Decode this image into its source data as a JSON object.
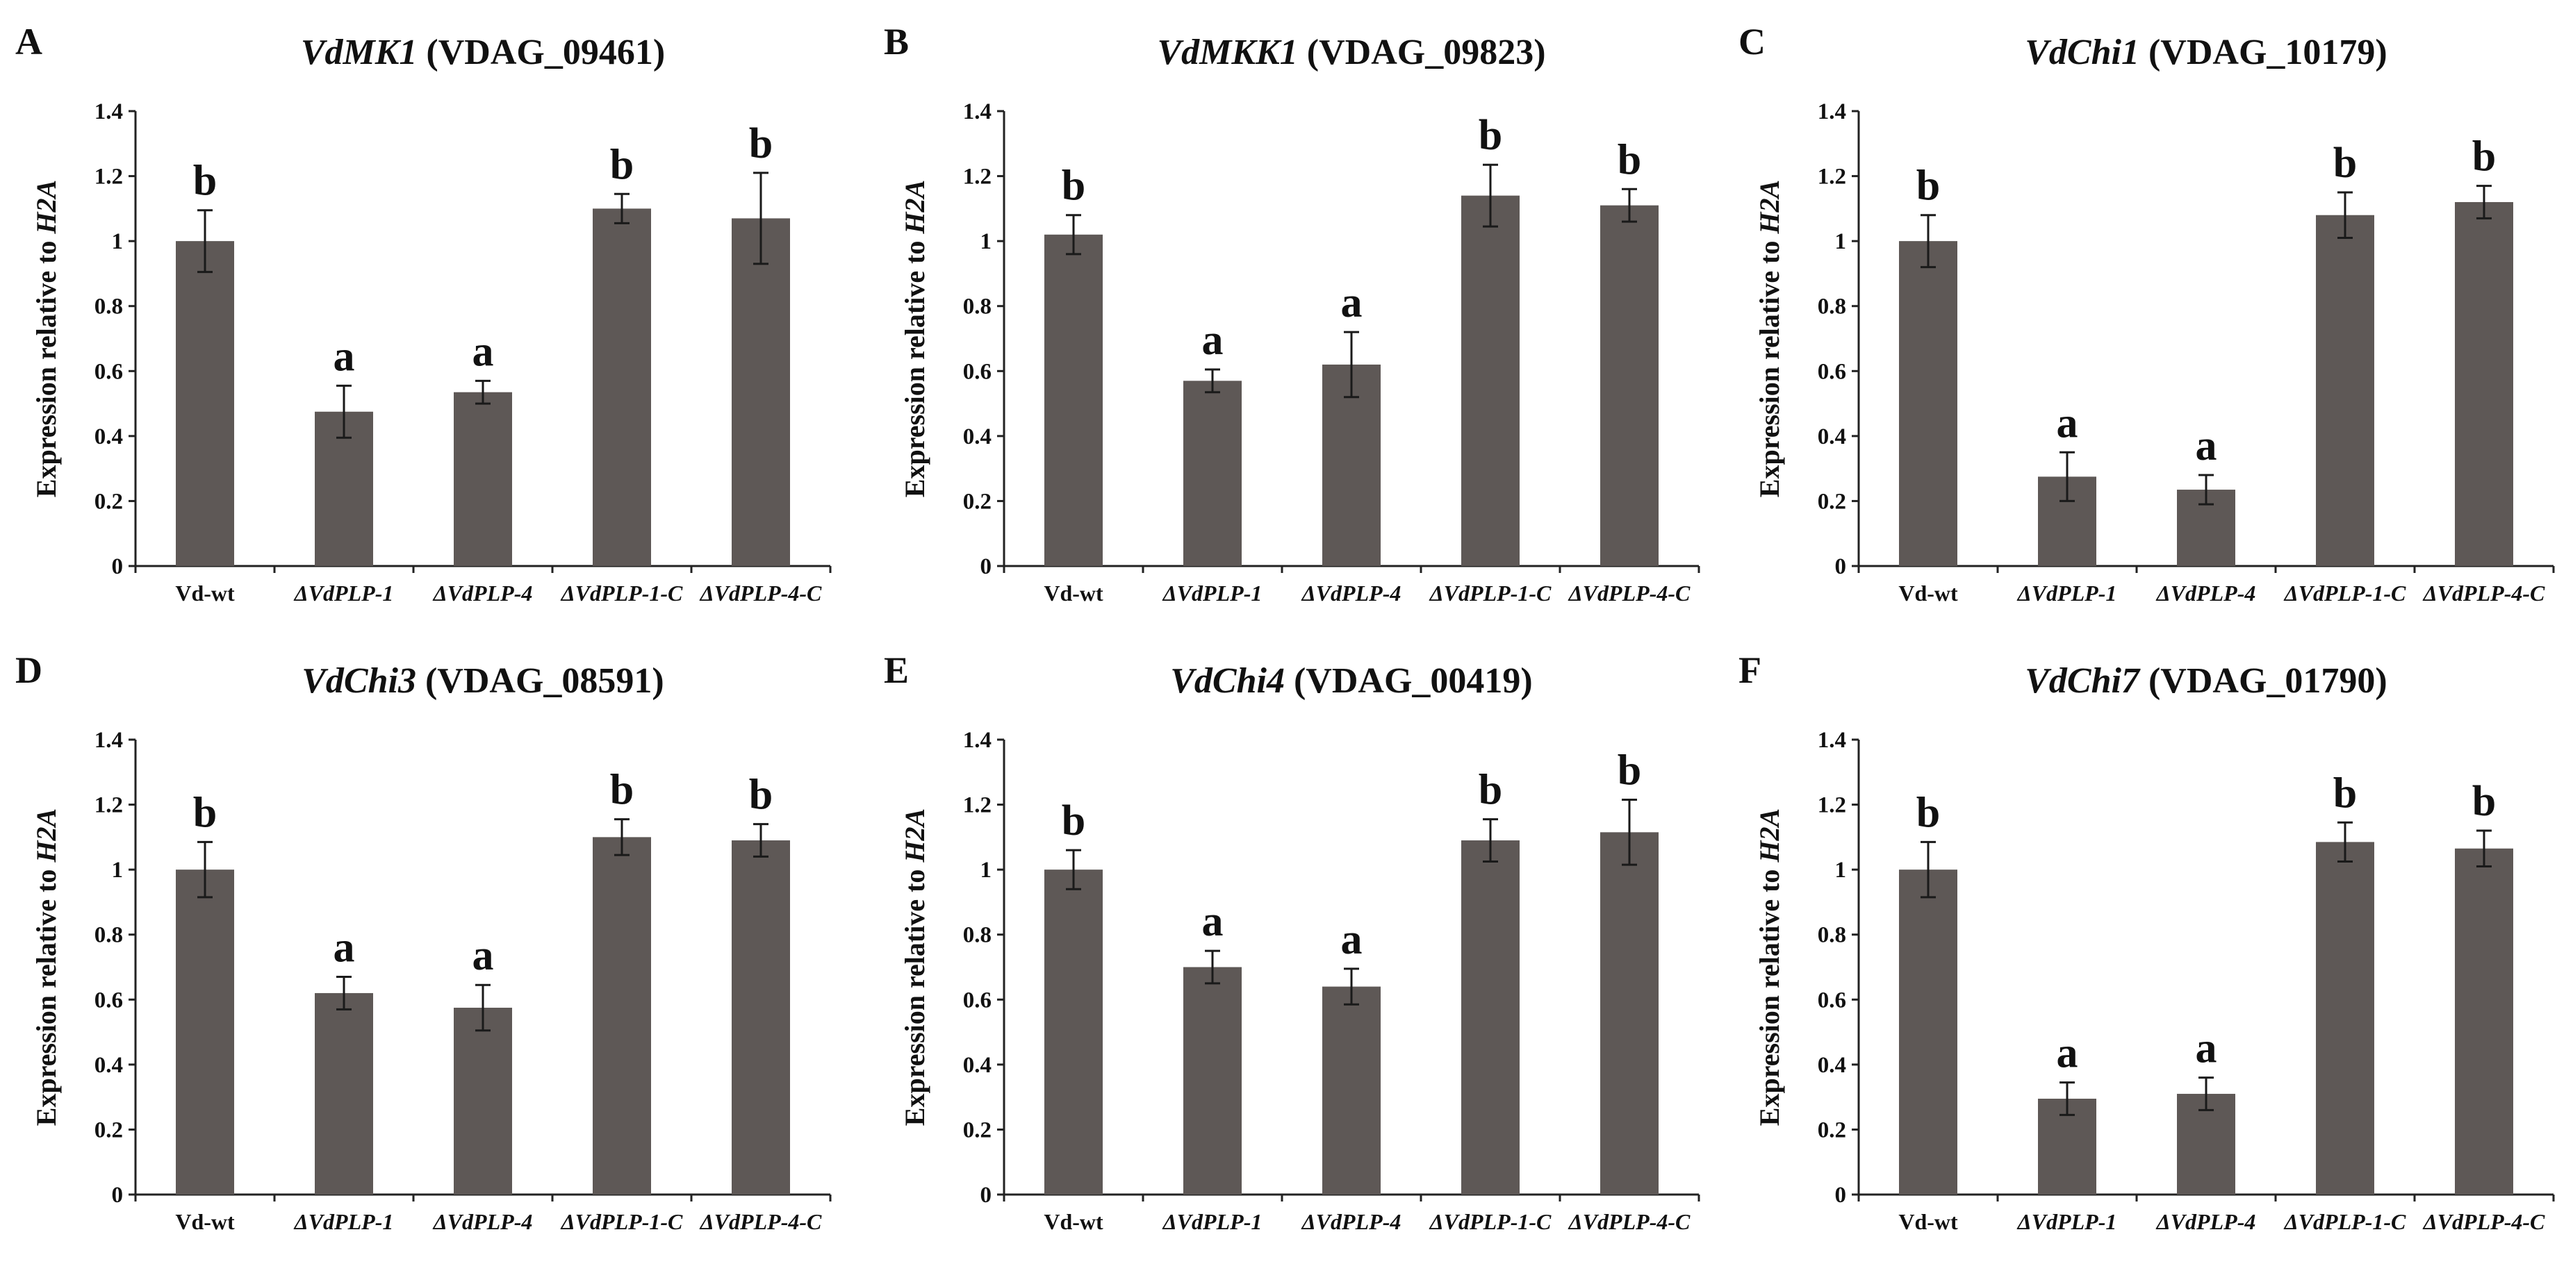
{
  "figure": {
    "bar_color": "#5e5856",
    "axis_color": "#222222",
    "text_color": "#111111"
  },
  "chart_data": [
    {
      "type": "bar",
      "panel": "A",
      "title_gene": "VdMK1",
      "title_id": "(VDAG_09461)",
      "ylabel_prefix": "Expression relative to ",
      "ylabel_ref": "H2A",
      "ylim": [
        0,
        1.4
      ],
      "yticks": [
        "0",
        "0.2",
        "0.4",
        "0.6",
        "0.8",
        "1",
        "1.2",
        "1.4"
      ],
      "categories": [
        "Vd-wt",
        "ΔVdPLP-1",
        "ΔVdPLP-4",
        "ΔVdPLP-1-C",
        "ΔVdPLP-4-C"
      ],
      "values": [
        1.0,
        0.475,
        0.535,
        1.1,
        1.07
      ],
      "errors": [
        0.095,
        0.08,
        0.035,
        0.045,
        0.14
      ],
      "letters": [
        "b",
        "a",
        "a",
        "b",
        "b"
      ]
    },
    {
      "type": "bar",
      "panel": "B",
      "title_gene": "VdMKK1",
      "title_id": "(VDAG_09823)",
      "ylabel_prefix": "Expression relative to ",
      "ylabel_ref": "H2A",
      "ylim": [
        0,
        1.4
      ],
      "yticks": [
        "0",
        "0.2",
        "0.4",
        "0.6",
        "0.8",
        "1",
        "1.2",
        "1.4"
      ],
      "categories": [
        "Vd-wt",
        "ΔVdPLP-1",
        "ΔVdPLP-4",
        "ΔVdPLP-1-C",
        "ΔVdPLP-4-C"
      ],
      "values": [
        1.02,
        0.57,
        0.62,
        1.14,
        1.11
      ],
      "errors": [
        0.06,
        0.035,
        0.1,
        0.095,
        0.05
      ],
      "letters": [
        "b",
        "a",
        "a",
        "b",
        "b"
      ]
    },
    {
      "type": "bar",
      "panel": "C",
      "title_gene": "VdChi1",
      "title_id": "(VDAG_10179)",
      "ylabel_prefix": "Expression relative to ",
      "ylabel_ref": "H2A",
      "ylim": [
        0,
        1.4
      ],
      "yticks": [
        "0",
        "0.2",
        "0.4",
        "0.6",
        "0.8",
        "1",
        "1.2",
        "1.4"
      ],
      "categories": [
        "Vd-wt",
        "ΔVdPLP-1",
        "ΔVdPLP-4",
        "ΔVdPLP-1-C",
        "ΔVdPLP-4-C"
      ],
      "values": [
        1.0,
        0.275,
        0.235,
        1.08,
        1.12
      ],
      "errors": [
        0.08,
        0.075,
        0.045,
        0.07,
        0.05
      ],
      "letters": [
        "b",
        "a",
        "a",
        "b",
        "b"
      ]
    },
    {
      "type": "bar",
      "panel": "D",
      "title_gene": "VdChi3",
      "title_id": "(VDAG_08591)",
      "ylabel_prefix": "Expression relative to ",
      "ylabel_ref": "H2A",
      "ylim": [
        0,
        1.4
      ],
      "yticks": [
        "0",
        "0.2",
        "0.4",
        "0.6",
        "0.8",
        "1",
        "1.2",
        "1.4"
      ],
      "categories": [
        "Vd-wt",
        "ΔVdPLP-1",
        "ΔVdPLP-4",
        "ΔVdPLP-1-C",
        "ΔVdPLP-4-C"
      ],
      "values": [
        1.0,
        0.62,
        0.575,
        1.1,
        1.09
      ],
      "errors": [
        0.085,
        0.05,
        0.07,
        0.055,
        0.05
      ],
      "letters": [
        "b",
        "a",
        "a",
        "b",
        "b"
      ]
    },
    {
      "type": "bar",
      "panel": "E",
      "title_gene": "VdChi4",
      "title_id": "(VDAG_00419)",
      "ylabel_prefix": "Expression relative to ",
      "ylabel_ref": "H2A",
      "ylim": [
        0,
        1.4
      ],
      "yticks": [
        "0",
        "0.2",
        "0.4",
        "0.6",
        "0.8",
        "1",
        "1.2",
        "1.4"
      ],
      "categories": [
        "Vd-wt",
        "ΔVdPLP-1",
        "ΔVdPLP-4",
        "ΔVdPLP-1-C",
        "ΔVdPLP-4-C"
      ],
      "values": [
        1.0,
        0.7,
        0.64,
        1.09,
        1.115
      ],
      "errors": [
        0.06,
        0.05,
        0.055,
        0.065,
        0.1
      ],
      "letters": [
        "b",
        "a",
        "a",
        "b",
        "b"
      ]
    },
    {
      "type": "bar",
      "panel": "F",
      "title_gene": "VdChi7",
      "title_id": "(VDAG_01790)",
      "ylabel_prefix": "Expression relative to ",
      "ylabel_ref": "H2A",
      "ylim": [
        0,
        1.4
      ],
      "yticks": [
        "0",
        "0.2",
        "0.4",
        "0.6",
        "0.8",
        "1",
        "1.2",
        "1.4"
      ],
      "categories": [
        "Vd-wt",
        "ΔVdPLP-1",
        "ΔVdPLP-4",
        "ΔVdPLP-1-C",
        "ΔVdPLP-4-C"
      ],
      "values": [
        1.0,
        0.295,
        0.31,
        1.085,
        1.065
      ],
      "errors": [
        0.085,
        0.05,
        0.05,
        0.06,
        0.055
      ],
      "letters": [
        "b",
        "a",
        "a",
        "b",
        "b"
      ]
    }
  ]
}
